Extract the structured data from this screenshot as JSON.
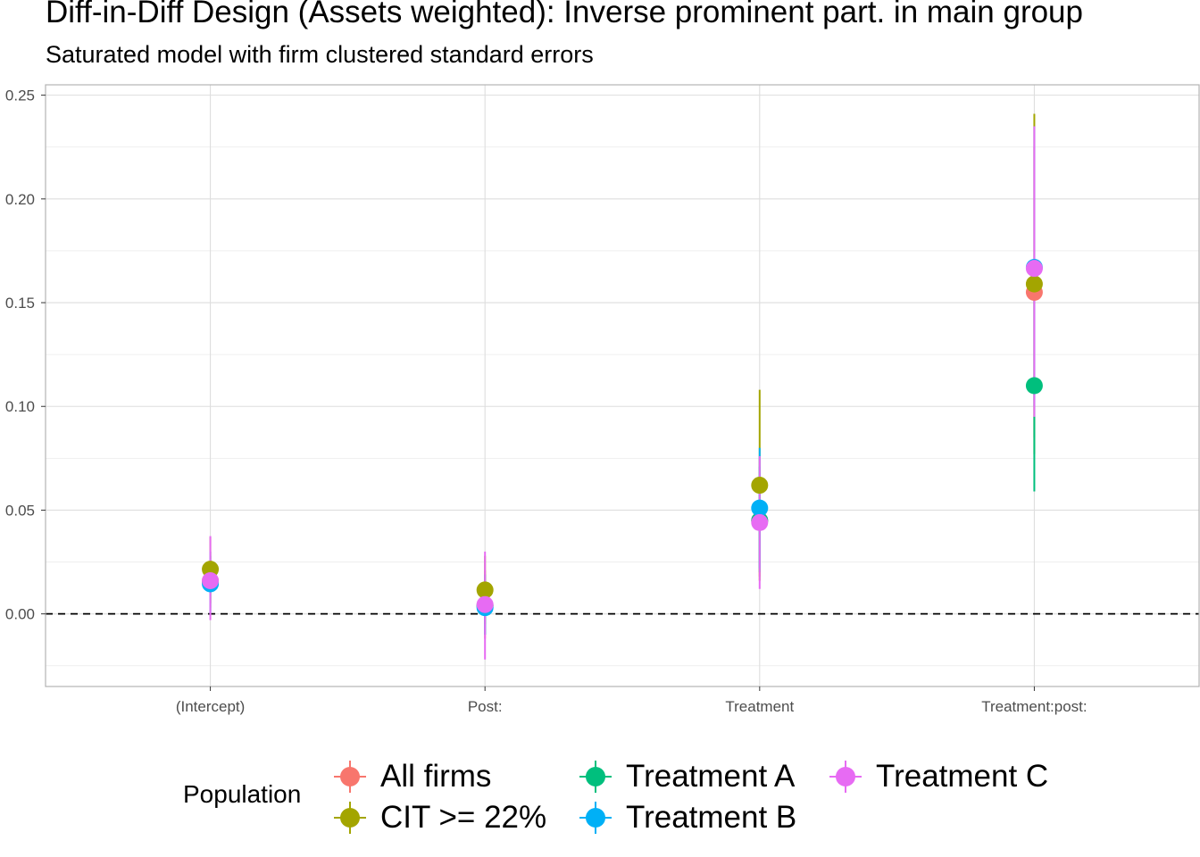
{
  "chart_data": {
    "type": "pointrange",
    "title": "Diff-in-Diff Design (Assets weighted): Inverse prominent part. in main group",
    "subtitle": "Saturated model with firm clustered standard errors",
    "xlabel": "",
    "ylabel": "",
    "categories": [
      "(Intercept)",
      "Post:",
      "Treatment",
      "Treatment:post:"
    ],
    "ylim": [
      -0.035,
      0.255
    ],
    "yticks": [
      0.0,
      0.05,
      0.1,
      0.15,
      0.2,
      0.25
    ],
    "ytick_labels": [
      "0.00",
      "0.05",
      "0.10",
      "0.15",
      "0.20",
      "0.25"
    ],
    "reference_line": 0,
    "legend": {
      "title": "Population",
      "position": "bottom"
    },
    "series": [
      {
        "name": "All firms",
        "color": "#F8766D",
        "values": [
          0.016,
          0.004,
          0.045,
          0.155
        ],
        "lower": [
          0.003,
          -0.012,
          0.018,
          0.085
        ],
        "upper": [
          0.03,
          0.021,
          0.075,
          0.225
        ]
      },
      {
        "name": "CIT >= 22%",
        "color": "#A3A500",
        "values": [
          0.0215,
          0.0115,
          0.062,
          0.159
        ],
        "lower": [
          0.005,
          -0.005,
          0.016,
          0.077
        ],
        "upper": [
          0.037,
          0.028,
          0.108,
          0.241
        ]
      },
      {
        "name": "Treatment A",
        "color": "#00BF7D",
        "values": [
          0.015,
          0.004,
          0.045,
          0.11
        ],
        "lower": [
          0.001,
          -0.01,
          0.02,
          0.059
        ],
        "upper": [
          0.028,
          0.019,
          0.071,
          0.16
        ]
      },
      {
        "name": "Treatment B",
        "color": "#00B0F6",
        "values": [
          0.0145,
          0.003,
          0.051,
          0.167
        ],
        "lower": [
          0.0,
          -0.01,
          0.022,
          0.1
        ],
        "upper": [
          0.03,
          0.016,
          0.08,
          0.235
        ]
      },
      {
        "name": "Treatment C",
        "color": "#E76BF3",
        "values": [
          0.016,
          0.0045,
          0.044,
          0.1665
        ],
        "lower": [
          -0.003,
          -0.022,
          0.012,
          0.095
        ],
        "upper": [
          0.0375,
          0.03,
          0.076,
          0.235
        ]
      }
    ]
  }
}
